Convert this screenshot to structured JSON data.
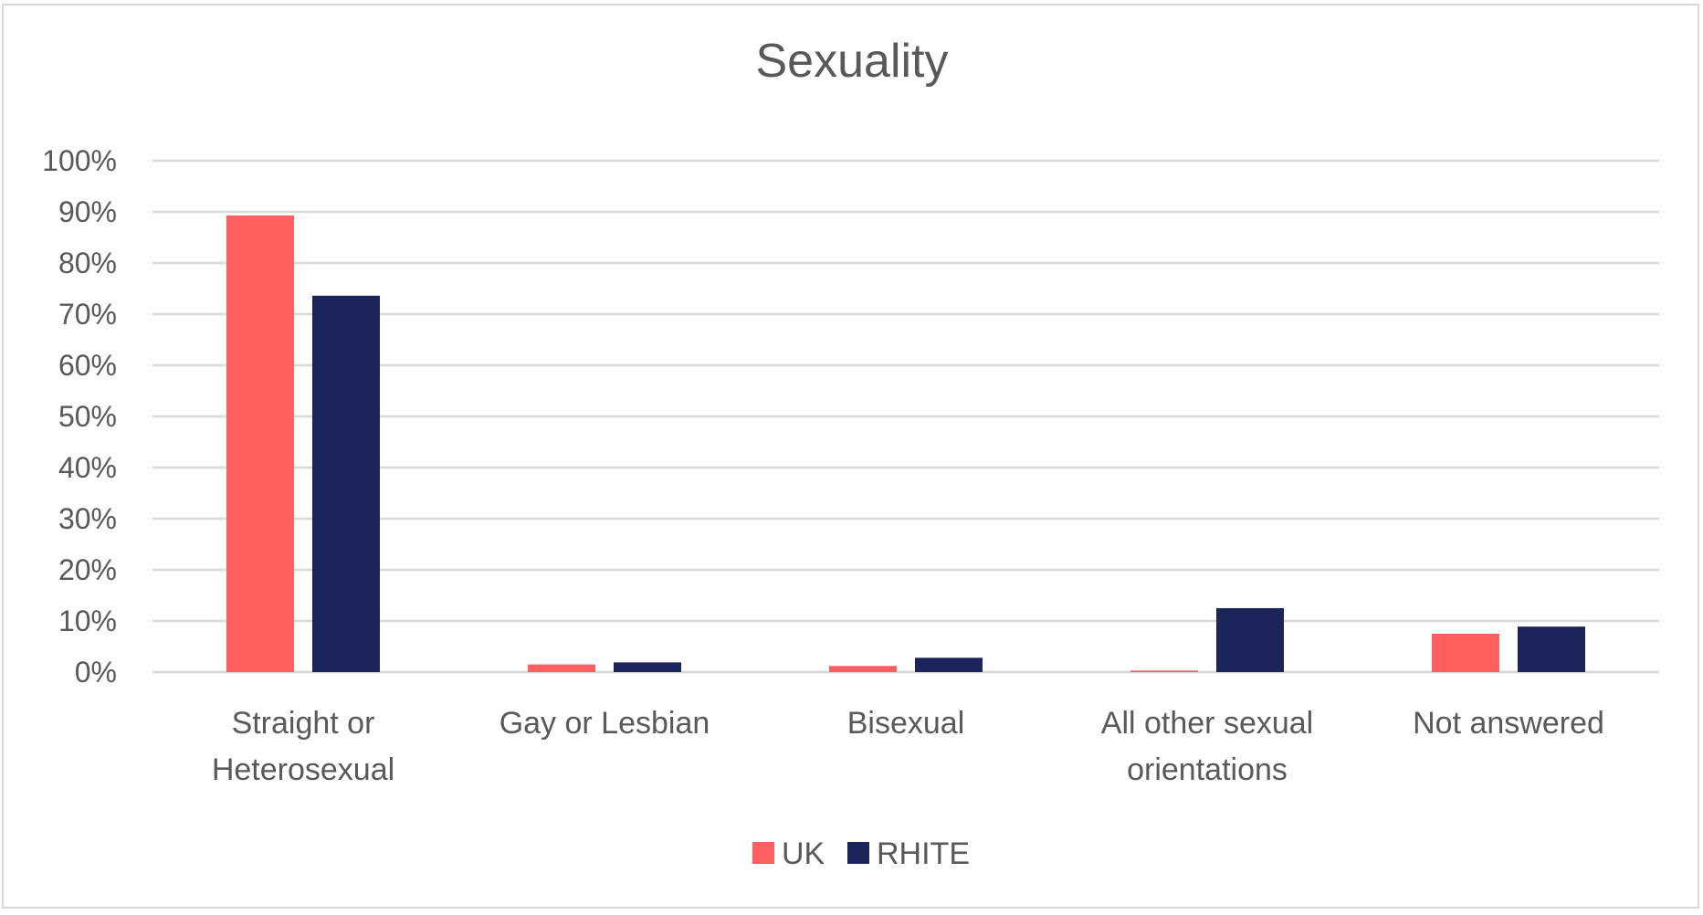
{
  "chart_data": {
    "type": "bar",
    "title": "Sexuality",
    "xlabel": "",
    "ylabel": "",
    "ylim": [
      0,
      100
    ],
    "yticks": [
      0,
      10,
      20,
      30,
      40,
      50,
      60,
      70,
      80,
      90,
      100
    ],
    "ytick_format": "percent",
    "grid": true,
    "legend_position": "bottom",
    "categories": [
      [
        "Straight or",
        "Heterosexual"
      ],
      [
        "Gay or Lesbian"
      ],
      [
        "Bisexual"
      ],
      [
        "All other sexual",
        "orientations"
      ],
      [
        "Not answered"
      ]
    ],
    "series": [
      {
        "name": "UK",
        "color": "#ff5f5f",
        "values": [
          89.3,
          1.5,
          1.2,
          0.3,
          7.5
        ]
      },
      {
        "name": "RHITE",
        "color": "#1b2559",
        "values": [
          73.6,
          1.9,
          2.8,
          12.5,
          8.9
        ]
      }
    ],
    "colors": {
      "grid": "#d9d9d9",
      "axis": "#d9d9d9",
      "text": "#595959"
    }
  }
}
